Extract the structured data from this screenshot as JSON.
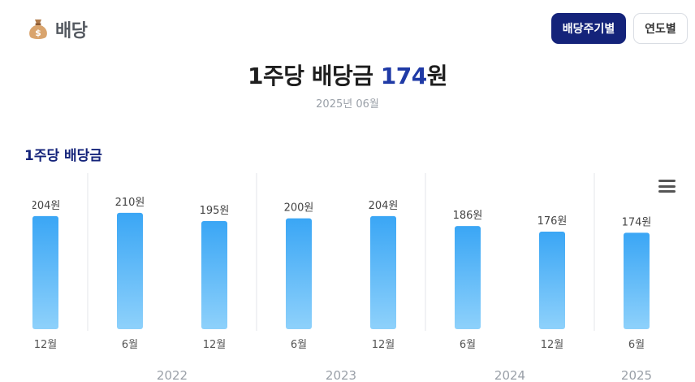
{
  "header": {
    "icon": "money-bag-icon",
    "title": "배당"
  },
  "toggle": {
    "by_period": "배당주기별",
    "by_year": "연도별",
    "active": "배당주기별"
  },
  "headline": {
    "prefix": "1주당 배당금 ",
    "value": "174",
    "suffix": "원"
  },
  "date_label": "2025년 06월",
  "section_title": "1주당 배당금",
  "colors": {
    "bar_top": "#3aa6f5",
    "bar_bottom": "#8ed1fb",
    "accent": "#1f3aa6",
    "button": "#14237a"
  },
  "chart_data": {
    "type": "bar",
    "categories": [
      "12월",
      "6월",
      "12월",
      "6월",
      "12월",
      "6월",
      "12월",
      "6월"
    ],
    "years": [
      "",
      "2022",
      "2022",
      "2023",
      "2023",
      "2024",
      "2024",
      "2025"
    ],
    "year_labels": [
      "2022",
      "2023",
      "2024",
      "2025"
    ],
    "values": [
      204,
      210,
      195,
      200,
      204,
      186,
      176,
      174
    ],
    "data_labels": [
      "204원",
      "210원",
      "195원",
      "200원",
      "204원",
      "186원",
      "176원",
      "174원"
    ],
    "ylim": [
      0,
      220
    ],
    "grid": false,
    "legend": "none",
    "title": "1주당 배당금"
  }
}
